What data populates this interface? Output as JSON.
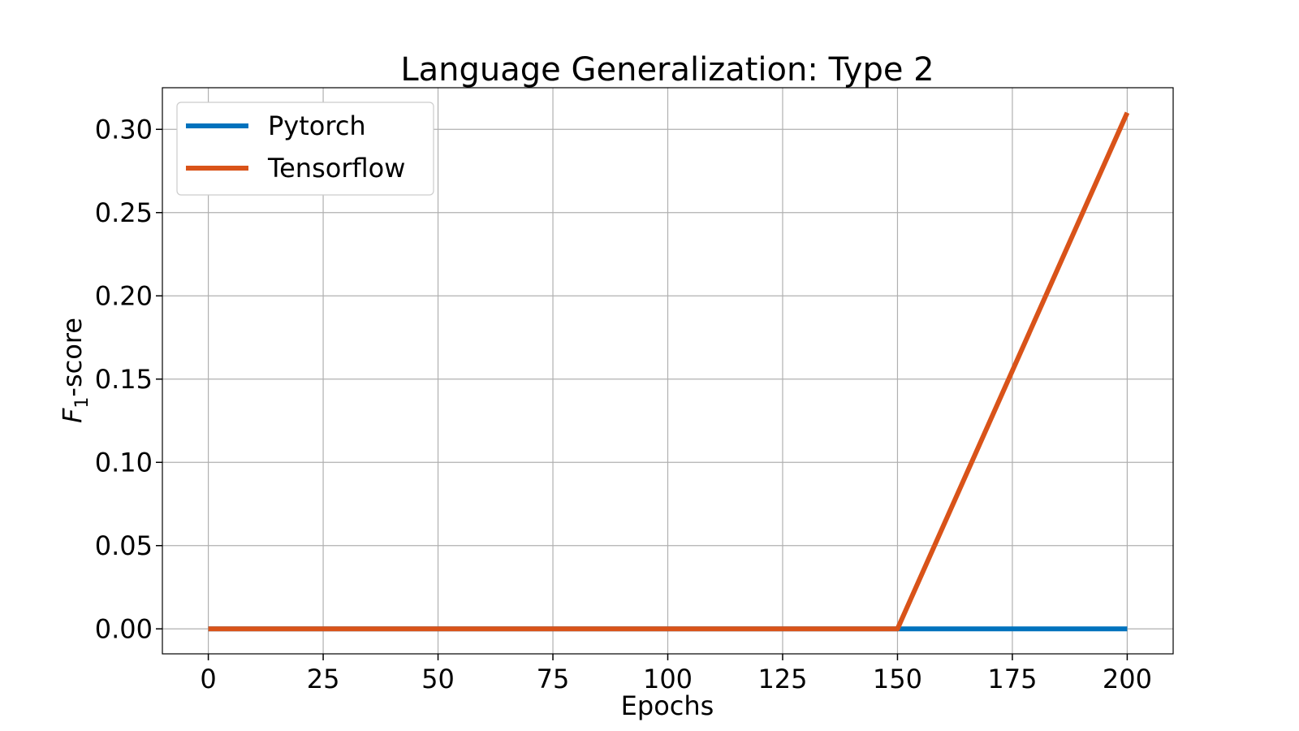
{
  "chart_data": {
    "type": "line",
    "title": "Language Generalization: Type 2",
    "xlabel": "Epochs",
    "ylabel_main": "F",
    "ylabel_sub": "1",
    "ylabel_suffix": "-score",
    "xlim": [
      -10,
      210
    ],
    "ylim": [
      -0.015,
      0.325
    ],
    "xticks": [
      0,
      25,
      50,
      75,
      100,
      125,
      150,
      175,
      200
    ],
    "xtick_labels": [
      "0",
      "25",
      "50",
      "75",
      "100",
      "125",
      "150",
      "175",
      "200"
    ],
    "yticks": [
      0.0,
      0.05,
      0.1,
      0.15,
      0.2,
      0.25,
      0.3
    ],
    "ytick_labels": [
      "0.00",
      "0.05",
      "0.10",
      "0.15",
      "0.20",
      "0.25",
      "0.30"
    ],
    "grid": true,
    "legend_position": "top-left",
    "series": [
      {
        "name": "Pytorch",
        "color": "#0072bd",
        "x": [
          0,
          150,
          200
        ],
        "y": [
          0.0,
          0.0,
          0.0
        ]
      },
      {
        "name": "Tensorflow",
        "color": "#d95319",
        "x": [
          0,
          150,
          200
        ],
        "y": [
          0.0,
          0.0,
          0.31
        ]
      }
    ]
  }
}
